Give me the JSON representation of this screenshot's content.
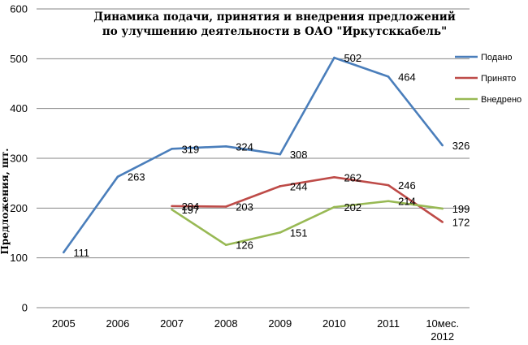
{
  "chart_data": {
    "type": "line",
    "title_lines": [
      "Динамика подачи, принятия и внедрения предложений",
      "по улучшению деятельности в ОАО \"Иркутсккабель\""
    ],
    "ylabel": "Предложения, шт.",
    "xlabel": "",
    "categories": [
      "2005",
      "2006",
      "2007",
      "2008",
      "2009",
      "2010",
      "2011",
      "10мес.\n2012"
    ],
    "ylim": [
      0,
      600
    ],
    "yticks": [
      0,
      100,
      200,
      300,
      400,
      500,
      600
    ],
    "grid": true,
    "legend_position": "right",
    "series": [
      {
        "name": "Подано",
        "color": "#4a7ebb",
        "values": [
          111,
          263,
          319,
          324,
          308,
          502,
          464,
          326
        ],
        "labels": [
          "111",
          "263",
          "319",
          "324",
          "308",
          "502",
          "464",
          "326"
        ]
      },
      {
        "name": "Принято",
        "color": "#be4b48",
        "values": [
          null,
          null,
          204,
          203,
          244,
          262,
          246,
          172
        ],
        "labels": [
          "",
          "",
          "204",
          "203",
          "244",
          "262",
          "246",
          "172"
        ]
      },
      {
        "name": "Внедрено",
        "color": "#98b954",
        "values": [
          null,
          null,
          197,
          126,
          151,
          202,
          214,
          199
        ],
        "labels": [
          "",
          "",
          "197",
          "126",
          "151",
          "202",
          "214",
          "199"
        ]
      }
    ]
  }
}
